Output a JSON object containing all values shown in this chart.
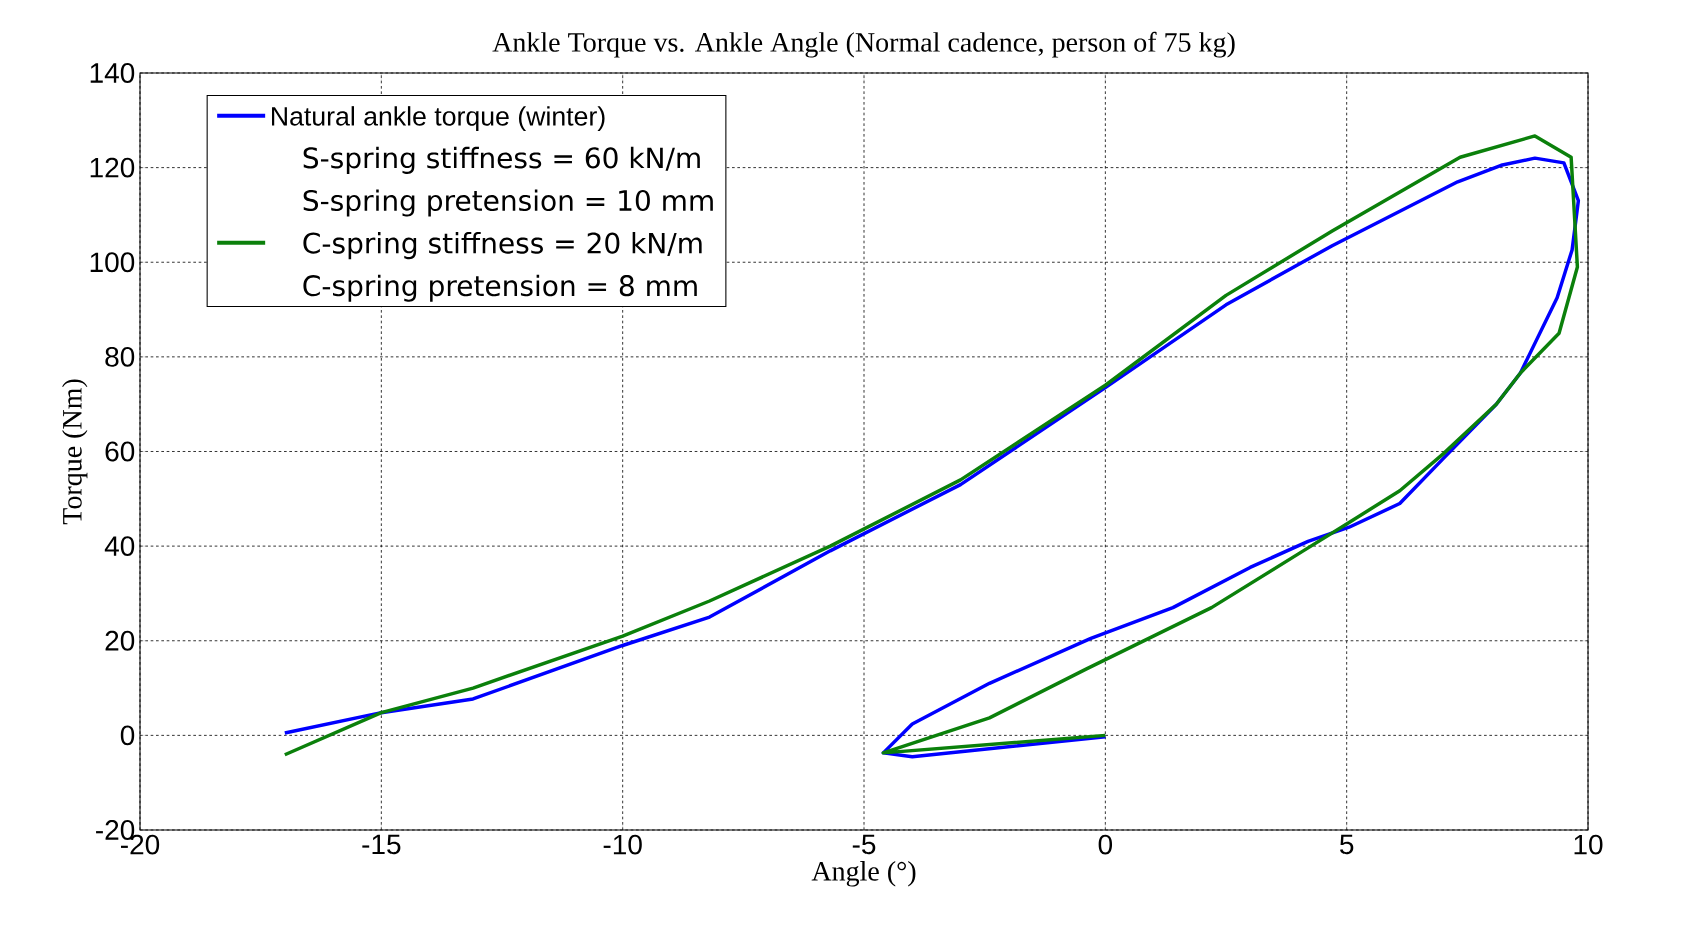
{
  "chart_data": {
    "type": "line",
    "title": "Ankle Torque vs. Ankle Angle (Normal cadence, person of 75 kg)",
    "xlabel": "Angle (°)",
    "ylabel": "Torque (Nm)",
    "xlim": [
      -20,
      10
    ],
    "ylim": [
      -20,
      140
    ],
    "xticks": [
      -20,
      -15,
      -10,
      -5,
      0,
      5,
      10
    ],
    "yticks": [
      -20,
      0,
      20,
      40,
      60,
      80,
      100,
      120,
      140
    ],
    "grid": true,
    "legend": "top left",
    "line_style": "solid",
    "marker": "none",
    "annotations": [
      "S-spring stiffness = 60 kN/m",
      "S-spring pretension = 10 mm",
      "C-spring pretension = 8 mm"
    ],
    "series": [
      {
        "name": "Natural ankle torque (winter)",
        "color": "#0000ff",
        "x": [
          -17,
          -15,
          -13.1,
          -10,
          -8.2,
          -5.7,
          -3,
          0,
          2.5,
          4.7,
          7.3,
          8.2,
          8.9,
          9.5,
          9.8,
          9.67,
          9.36,
          8.6,
          8.1,
          7,
          6.1,
          5.05,
          4.2,
          3,
          1.4,
          -0.3,
          -2.4,
          -4,
          -4.6,
          -4,
          0
        ],
        "values": [
          0.5,
          4.8,
          7.7,
          19,
          25,
          39,
          53,
          73.5,
          91,
          103.5,
          117,
          120.5,
          122,
          121,
          113,
          102.6,
          92.5,
          76.6,
          70,
          58.5,
          49,
          44,
          41,
          35.5,
          27,
          20.5,
          11,
          2.4,
          -3.7,
          -4.5,
          -0.3
        ]
      },
      {
        "name": "C-spring stiffness = 20 kN/m",
        "color": "#0b800b",
        "x": [
          -17,
          -15,
          -13.1,
          -10,
          -8.2,
          -5.7,
          -3,
          0,
          2.5,
          4.7,
          7.35,
          8.9,
          9.65,
          9.78,
          9.4,
          8.6,
          8.1,
          7,
          6.1,
          5.05,
          4.1,
          2.2,
          -0.4,
          -2.4,
          -4.6,
          0
        ],
        "values": [
          -4.1,
          4.8,
          10,
          21,
          28.4,
          40,
          54,
          74,
          93,
          106.6,
          122.2,
          126.7,
          122.2,
          99,
          85,
          76.6,
          70,
          59.5,
          51.7,
          45,
          39,
          27,
          14,
          3.7,
          -3.7,
          0
        ]
      }
    ]
  }
}
